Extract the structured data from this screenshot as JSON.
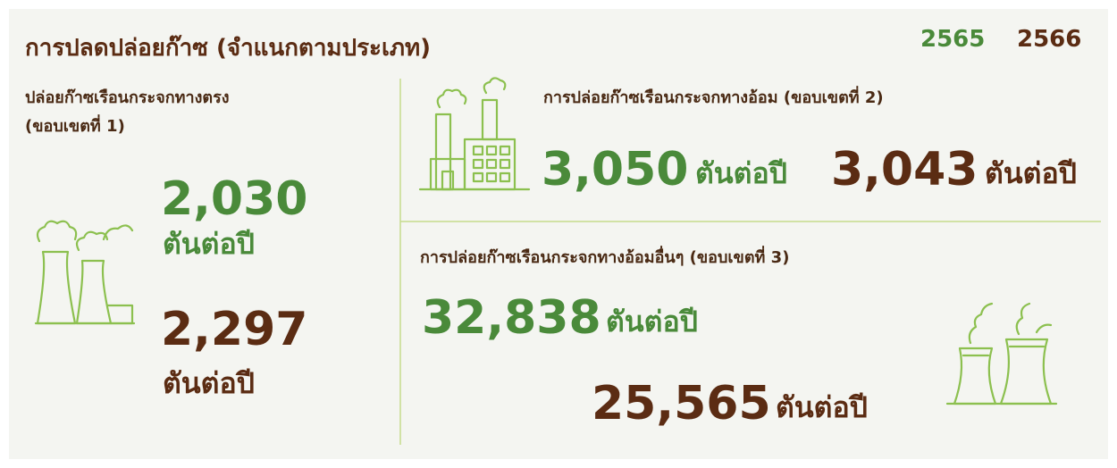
{
  "title": "การปลดปล่อยก๊าซ (จำแนกตามประเภท)",
  "legend": [
    "2565",
    "2566"
  ],
  "unit": "ตันต่อปี",
  "scope1": {
    "label": [
      "ปล่อยก๊าซเรือนกระจกทางตรง",
      "(ขอบเขตที่ 1)"
    ],
    "values": [
      "2,030",
      "2,297"
    ]
  },
  "scope2": {
    "label": "การปล่อยก๊าซเรือนกระจกทางอ้อม (ขอบเขตที่ 2)",
    "values": [
      "3,050",
      "3,043"
    ]
  },
  "scope3": {
    "label": "การปล่อยก๊าซเรือนกระจกทางอ้อมอื่นๆ (ขอบเขตที่ 3)",
    "values": [
      "32,838",
      "25,565"
    ]
  }
}
